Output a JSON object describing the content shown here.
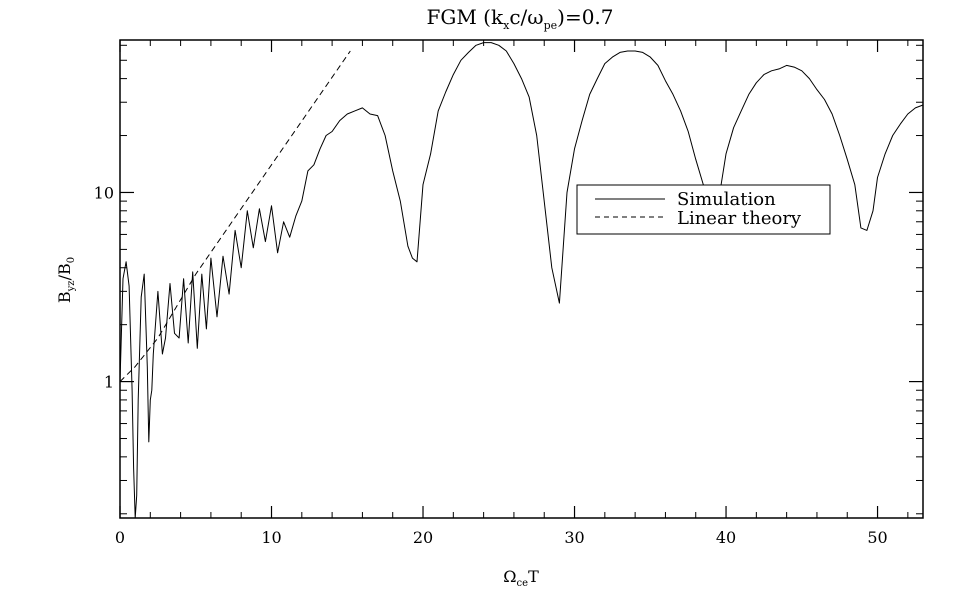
{
  "chart_data": {
    "type": "line",
    "title_main": "FGM (k",
    "title_sub_x": "x",
    "title_mid": "c/ω",
    "title_sub_pe": "pe",
    "title_end": ")=0.7",
    "xlabel_main": "Ω",
    "xlabel_sub": "ce",
    "xlabel_end": "T",
    "ylabel_main": "B",
    "ylabel_sub_yz": "yz",
    "ylabel_mid": "/B",
    "ylabel_sub_0": "0",
    "xlim": [
      0,
      53
    ],
    "ylim": [
      0.19,
      64
    ],
    "yscale": "log",
    "xticks": [
      {
        "value": 0,
        "label": "0"
      },
      {
        "value": 10,
        "label": "10"
      },
      {
        "value": 20,
        "label": "20"
      },
      {
        "value": 30,
        "label": "30"
      },
      {
        "value": 40,
        "label": "40"
      },
      {
        "value": 50,
        "label": "50"
      }
    ],
    "yticks": [
      {
        "value": 1,
        "label": "1"
      },
      {
        "value": 10,
        "label": "10"
      }
    ],
    "legend": {
      "placement": "center-right",
      "items": [
        {
          "label": "Simulation",
          "style": "solid"
        },
        {
          "label": "Linear theory",
          "style": "dashed"
        }
      ]
    },
    "series": [
      {
        "name": "Simulation",
        "style": "solid",
        "color": "#000000",
        "x": [
          0,
          0.2,
          0.4,
          0.6,
          0.8,
          0.9,
          1.0,
          1.1,
          1.2,
          1.4,
          1.6,
          1.8,
          1.9,
          2.0,
          2.1,
          2.2,
          2.5,
          2.8,
          3.0,
          3.3,
          3.6,
          3.9,
          4.2,
          4.5,
          4.8,
          5.1,
          5.4,
          5.7,
          6.0,
          6.4,
          6.8,
          7.2,
          7.6,
          8.0,
          8.4,
          8.8,
          9.2,
          9.6,
          10.0,
          10.4,
          10.8,
          11.2,
          11.6,
          12.0,
          12.4,
          12.8,
          13.2,
          13.6,
          14.0,
          14.5,
          15.0,
          15.5,
          16.0,
          16.5,
          17.0,
          17.5,
          18.0,
          18.5,
          19.0,
          19.3,
          19.6,
          20.0,
          20.5,
          21.0,
          21.5,
          22.0,
          22.5,
          23.0,
          23.5,
          24.0,
          24.5,
          25.0,
          25.5,
          26.0,
          26.5,
          27.0,
          27.5,
          28.0,
          28.5,
          29.0,
          29.5,
          30.0,
          30.5,
          31.0,
          31.5,
          32.0,
          32.5,
          33.0,
          33.5,
          34.0,
          34.5,
          35.0,
          35.5,
          36.0,
          36.5,
          37.0,
          37.5,
          38.0,
          38.5,
          39.0,
          39.5,
          40.0,
          40.5,
          41.0,
          41.5,
          42.0,
          42.5,
          43.0,
          43.5,
          44.0,
          44.5,
          45.0,
          45.5,
          46.0,
          46.5,
          47.0,
          47.5,
          48.0,
          48.5,
          48.9,
          49.3,
          49.7,
          50.0,
          50.5,
          51.0,
          51.5,
          52.0,
          52.5,
          53.0
        ],
        "y": [
          1.0,
          3.5,
          4.3,
          3.2,
          0.9,
          0.35,
          0.19,
          0.25,
          0.8,
          2.8,
          3.7,
          1.2,
          0.48,
          0.8,
          0.9,
          1.4,
          3.0,
          1.4,
          1.7,
          3.3,
          1.8,
          1.7,
          3.5,
          1.6,
          3.8,
          1.5,
          3.7,
          1.9,
          4.5,
          2.2,
          4.6,
          2.9,
          6.3,
          4.0,
          8.0,
          5.1,
          8.2,
          5.5,
          8.5,
          4.8,
          7.0,
          5.8,
          7.5,
          9.0,
          13.0,
          14.0,
          17.0,
          20.0,
          21.0,
          24.0,
          26.0,
          27.0,
          28.0,
          26.0,
          25.5,
          20.0,
          13.0,
          9.0,
          5.2,
          4.5,
          4.3,
          11.0,
          16.0,
          27.0,
          34.0,
          42.0,
          50.0,
          55.0,
          60.0,
          62.0,
          62.0,
          60.0,
          56.0,
          48.0,
          40.0,
          32.0,
          20.0,
          9.0,
          4.0,
          2.6,
          10.0,
          17.0,
          24.0,
          33.0,
          40.0,
          48.0,
          52.0,
          55.0,
          56.0,
          56.0,
          55.0,
          52.0,
          47.0,
          39.0,
          33.0,
          27.0,
          21.0,
          15.0,
          11.0,
          8.5,
          9.0,
          16.0,
          22.0,
          27.0,
          33.0,
          38.0,
          42.0,
          44.0,
          45.0,
          47.0,
          46.0,
          44.0,
          40.0,
          35.0,
          31.0,
          26.0,
          20.0,
          15.0,
          11.0,
          6.5,
          6.3,
          8.0,
          12.0,
          16.0,
          20.0,
          23.0,
          26.0,
          28.0,
          29.0
        ]
      },
      {
        "name": "Linear theory",
        "style": "dashed",
        "color": "#000000",
        "x": [
          0,
          1.0,
          2.5,
          5.0,
          10.0,
          15.2
        ],
        "y": [
          1.0,
          1.2,
          1.7,
          3.7,
          14.0,
          56.0
        ]
      }
    ]
  }
}
